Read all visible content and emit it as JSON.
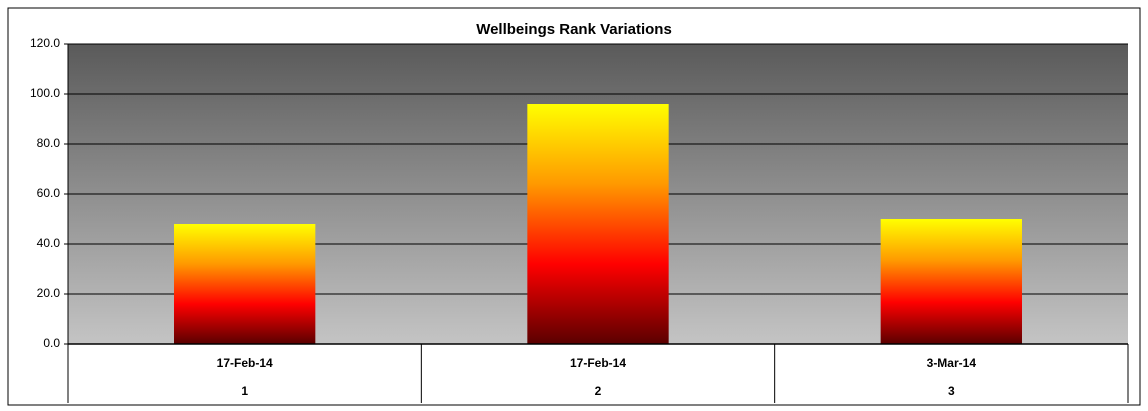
{
  "chart_data": {
    "type": "bar",
    "title": "Wellbeings Rank Variations",
    "categories": [
      "17-Feb-14",
      "17-Feb-14",
      "3-Mar-14"
    ],
    "category_groups": [
      1,
      2,
      3
    ],
    "values": [
      48,
      96,
      50
    ],
    "bar_gradient": [
      "#ffff00",
      "#ff9900",
      "#ff0000",
      "#5a0000"
    ],
    "plot_gradient": [
      "#5a5a5a",
      "#c4c4c4"
    ],
    "ylim": [
      0,
      120
    ],
    "yticks": [
      {
        "value": 0,
        "label": "0.0"
      },
      {
        "value": 20,
        "label": "20.0"
      },
      {
        "value": 40,
        "label": "40.0"
      },
      {
        "value": 60,
        "label": "60.0"
      },
      {
        "value": 80,
        "label": "80.0"
      },
      {
        "value": 100,
        "label": "100.0"
      },
      {
        "value": 120,
        "label": "120.0"
      }
    ],
    "grid": true
  }
}
